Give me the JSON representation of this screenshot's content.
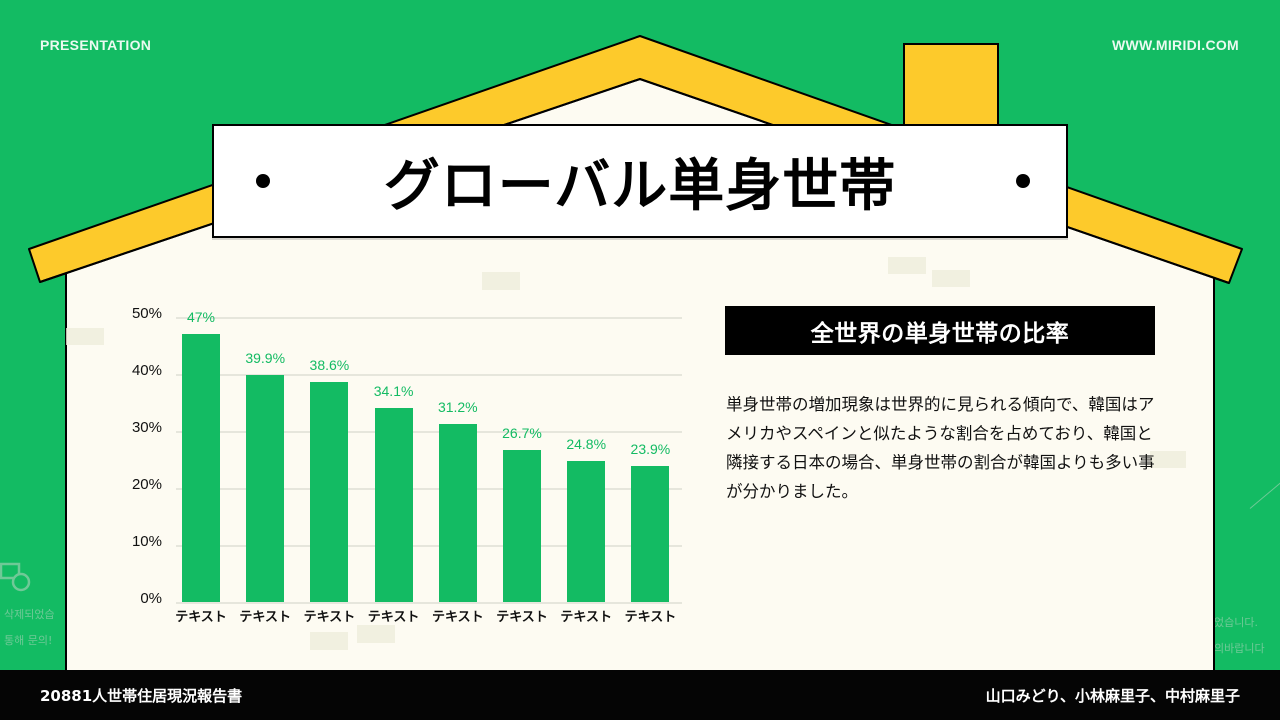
{
  "header": {
    "left_label": "PRESENTATION",
    "right_label": "WWW.MIRIDI.COM"
  },
  "title": {
    "text": "グローバル単身世帯"
  },
  "colors": {
    "background_green": "#13bb63",
    "roof_yellow": "#fdca2b",
    "house_cream": "#fdfbf2",
    "bar_green": "#13bb63",
    "footer_black": "#050505"
  },
  "chart_data": {
    "type": "bar",
    "title": "",
    "categories": [
      "テキスト",
      "テキスト",
      "テキスト",
      "テキスト",
      "テキスト",
      "テキスト",
      "テキスト",
      "テキスト"
    ],
    "values": [
      47,
      39.9,
      38.6,
      34.1,
      31.2,
      26.7,
      24.8,
      23.9
    ],
    "value_labels": [
      "47%",
      "39.9%",
      "38.6%",
      "34.1%",
      "31.2%",
      "26.7%",
      "24.8%",
      "23.9%"
    ],
    "xlabel": "",
    "ylabel": "",
    "ylim": [
      0,
      50
    ],
    "yticks": [
      "0%",
      "10%",
      "20%",
      "30%",
      "40%",
      "50%"
    ],
    "grid": true,
    "legend": "none"
  },
  "panel": {
    "heading": "全世界の単身世帯の比率",
    "body": "単身世帯の増加現象は世界的に見られる傾向で、韓国はアメリカやスペインと似たような割合を占めており、韓国と隣接する日本の場合、単身世帯の割合が韓国よりも多い事が分かりました。"
  },
  "ghost_text": {
    "left_line1": "삭제되었습",
    "left_line2": "통해 문의!",
    "right_line1": "었습니다.",
    "right_line2": "의바랍니다"
  },
  "footer": {
    "left": "20881人世帯住居現況報告書",
    "right": "山口みどり、小林麻里子、中村麻里子"
  }
}
